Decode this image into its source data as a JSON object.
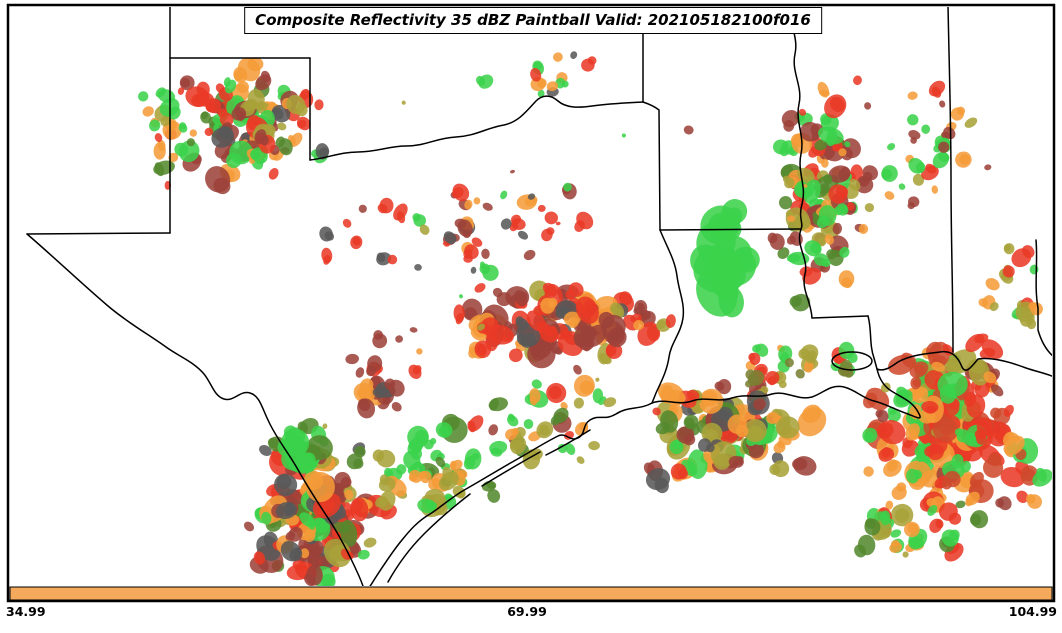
{
  "title": {
    "text": "Composite Reflectivity 35 dBZ Paintball Valid: 202105182100f016"
  },
  "axis": {
    "ticks": [
      "34.99",
      "69.99",
      "104.99"
    ]
  },
  "colorbar": {
    "color": "#f5a95c",
    "border": "#000000"
  },
  "canvas": {
    "background": "#ffffff",
    "frame_color": "#000000"
  },
  "chart_data": {
    "type": "paintball-map",
    "title": "Composite Reflectivity 35 dBZ Paintball Valid: 202105182100f016",
    "x_ticks": [
      "34.99",
      "69.99",
      "104.99"
    ],
    "palette": {
      "red": "#e93a26",
      "brickred": "#cf4a2d",
      "orange": "#f59b38",
      "green": "#3bd24b",
      "darkgreen": "#54892e",
      "olive": "#a9a23a",
      "darkolive": "#7b8032",
      "darkred": "#9c4139",
      "gray": "#585858"
    },
    "clusters": [
      {
        "name": "panhandle-cluster",
        "cx": 245,
        "cy": 130,
        "sx": 95,
        "sy": 62,
        "count": 92,
        "rmin": 4,
        "rmax": 11,
        "seed": 11,
        "colors": [
          "red",
          "red",
          "orange",
          "orange",
          "darkred",
          "darkred",
          "olive",
          "green",
          "darkgreen",
          "gray"
        ]
      },
      {
        "name": "panhandle-west-sparse",
        "cx": 160,
        "cy": 140,
        "sx": 42,
        "sy": 52,
        "count": 10,
        "rmin": 3,
        "rmax": 7,
        "seed": 21,
        "colors": [
          "red",
          "green",
          "orange"
        ]
      },
      {
        "name": "north-texas-scatter",
        "cx": 470,
        "cy": 230,
        "sx": 160,
        "sy": 60,
        "count": 46,
        "rmin": 3,
        "rmax": 9,
        "seed": 31,
        "colors": [
          "red",
          "red",
          "red",
          "darkred",
          "darkred",
          "orange",
          "green",
          "gray"
        ]
      },
      {
        "name": "central-texas-dense",
        "cx": 560,
        "cy": 322,
        "sx": 115,
        "sy": 38,
        "count": 95,
        "rmin": 5,
        "rmax": 12,
        "seed": 41,
        "colors": [
          "darkred",
          "darkred",
          "darkred",
          "red",
          "red",
          "orange",
          "orange",
          "gray",
          "olive"
        ]
      },
      {
        "name": "west-central-small",
        "cx": 385,
        "cy": 380,
        "sx": 42,
        "sy": 42,
        "count": 18,
        "rmin": 4,
        "rmax": 10,
        "seed": 51,
        "colors": [
          "darkred",
          "darkred",
          "red",
          "gray",
          "orange"
        ]
      },
      {
        "name": "south-texas-cluster",
        "cx": 315,
        "cy": 515,
        "sx": 75,
        "sy": 85,
        "count": 115,
        "rmin": 5,
        "rmax": 13,
        "seed": 61,
        "colors": [
          "red",
          "red",
          "red",
          "darkred",
          "darkred",
          "darkred",
          "orange",
          "orange",
          "green",
          "darkgreen",
          "olive",
          "gray"
        ]
      },
      {
        "name": "south-texas-green",
        "cx": 300,
        "cy": 445,
        "sx": 25,
        "sy": 35,
        "count": 12,
        "rmin": 8,
        "rmax": 16,
        "seed": 71,
        "colors": [
          "green",
          "green",
          "green",
          "darkgreen"
        ]
      },
      {
        "name": "coastal-bend-green",
        "cx": 435,
        "cy": 470,
        "sx": 70,
        "sy": 45,
        "count": 38,
        "rmin": 4,
        "rmax": 11,
        "seed": 81,
        "colors": [
          "green",
          "green",
          "green",
          "olive",
          "olive",
          "darkgreen",
          "orange"
        ]
      },
      {
        "name": "houston-scatter",
        "cx": 540,
        "cy": 420,
        "sx": 85,
        "sy": 48,
        "count": 30,
        "rmin": 4,
        "rmax": 9,
        "seed": 91,
        "colors": [
          "olive",
          "green",
          "red",
          "orange",
          "darkred",
          "darkgreen"
        ]
      },
      {
        "name": "east-texas-louisiana",
        "cx": 730,
        "cy": 430,
        "sx": 95,
        "sy": 55,
        "count": 88,
        "rmin": 5,
        "rmax": 13,
        "seed": 101,
        "colors": [
          "olive",
          "olive",
          "darkred",
          "darkred",
          "orange",
          "orange",
          "red",
          "green",
          "darkgreen",
          "gray"
        ]
      },
      {
        "name": "louisiana-coast-row",
        "cx": 790,
        "cy": 365,
        "sx": 62,
        "sy": 22,
        "count": 25,
        "rmin": 4,
        "rmax": 9,
        "seed": 111,
        "colors": [
          "olive",
          "green",
          "orange",
          "red",
          "darkolive"
        ]
      },
      {
        "name": "mississippi-river-column",
        "cx": 822,
        "cy": 195,
        "sx": 48,
        "sy": 118,
        "count": 85,
        "rmin": 4,
        "rmax": 11,
        "seed": 121,
        "colors": [
          "green",
          "green",
          "orange",
          "orange",
          "red",
          "darkred",
          "darkred",
          "olive",
          "darkgreen"
        ]
      },
      {
        "name": "bright-green-streak",
        "cx": 722,
        "cy": 272,
        "sx": 24,
        "sy": 52,
        "count": 10,
        "rmin": 13,
        "rmax": 26,
        "seed": 131,
        "colors": [
          "green"
        ]
      },
      {
        "name": "east-dense-mass",
        "cx": 950,
        "cy": 425,
        "sx": 95,
        "sy": 85,
        "count": 150,
        "rmin": 5,
        "rmax": 13,
        "seed": 141,
        "colors": [
          "orange",
          "orange",
          "orange",
          "red",
          "red",
          "red",
          "brickred",
          "green",
          "green",
          "olive",
          "darkred"
        ]
      },
      {
        "name": "southeast-lower-scatter",
        "cx": 920,
        "cy": 530,
        "sx": 80,
        "sy": 40,
        "count": 30,
        "rmin": 4,
        "rmax": 10,
        "seed": 151,
        "colors": [
          "orange",
          "red",
          "green",
          "olive",
          "darkgreen"
        ]
      },
      {
        "name": "northeast-scatter",
        "cx": 910,
        "cy": 150,
        "sx": 85,
        "sy": 75,
        "count": 35,
        "rmin": 3,
        "rmax": 8,
        "seed": 161,
        "colors": [
          "green",
          "green",
          "orange",
          "red",
          "darkred",
          "olive"
        ]
      },
      {
        "name": "right-edge-mid",
        "cx": 1015,
        "cy": 280,
        "sx": 35,
        "sy": 55,
        "count": 15,
        "rmin": 4,
        "rmax": 9,
        "seed": 171,
        "colors": [
          "green",
          "red",
          "orange",
          "olive"
        ]
      },
      {
        "name": "top-middle-scatter",
        "cx": 545,
        "cy": 80,
        "sx": 70,
        "sy": 35,
        "count": 12,
        "rmin": 3,
        "rmax": 7,
        "seed": 181,
        "colors": [
          "orange",
          "green",
          "gray",
          "red"
        ]
      },
      {
        "name": "misc-sparse",
        "cx": 530,
        "cy": 300,
        "sx": 450,
        "sy": 250,
        "count": 22,
        "rmin": 2,
        "rmax": 5,
        "seed": 191,
        "colors": [
          "red",
          "orange",
          "green",
          "darkred",
          "olive"
        ]
      }
    ]
  }
}
